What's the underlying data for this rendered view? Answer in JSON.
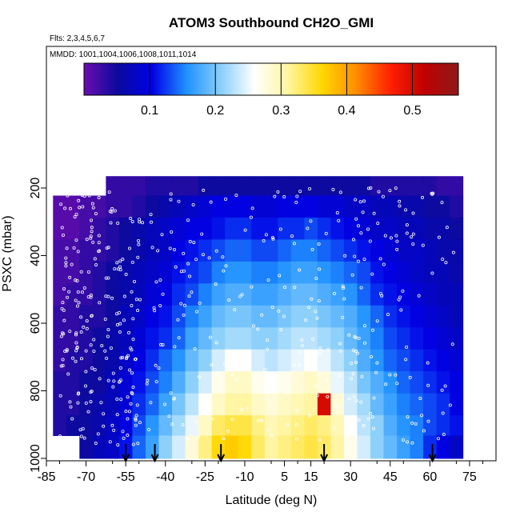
{
  "chart_data": {
    "type": "heatmap",
    "title": "ATOM3 Southbound CH2O_GMI",
    "flights_note": "Flts: 2,3,4,5,6,7",
    "dates_note": "MMDD: 1001,1004,1006,1008,1011,1014",
    "xlabel": "Latitude (deg N)",
    "ylabel": "PSXC (mbar)",
    "xlim": [
      -85,
      85
    ],
    "ylim": [
      1000,
      0
    ],
    "x_ticks": [
      -85,
      -70,
      -55,
      -40,
      -25,
      -10,
      5,
      15,
      30,
      45,
      60,
      75
    ],
    "y_ticks": [
      200,
      400,
      600,
      800,
      1000
    ],
    "colorbar": {
      "ticks": [
        0.1,
        0.2,
        0.3,
        0.4,
        0.5
      ],
      "range": [
        0,
        0.57
      ],
      "colors": [
        "#6a0dad",
        "#0a0aa0",
        "#0000e6",
        "#1e90ff",
        "#87cefa",
        "#ffffff",
        "#fff5a0",
        "#ffd700",
        "#ff8c00",
        "#ff2000",
        "#c00000",
        "#8b1a1a"
      ]
    },
    "profile_arrows_lat": [
      -55,
      -44,
      -19,
      20,
      61
    ],
    "pressure_levels": [
      190,
      255,
      320,
      385,
      450,
      515,
      580,
      645,
      710,
      775,
      840,
      905,
      960
    ],
    "latitude_bins": [
      -80,
      -75,
      -70,
      -65,
      -60,
      -55,
      -50,
      -45,
      -40,
      -35,
      -30,
      -25,
      -20,
      -15,
      -10,
      -5,
      0,
      5,
      10,
      15,
      20,
      25,
      30,
      35,
      40,
      45,
      50,
      55,
      60,
      65,
      70
    ],
    "ch2o_values": [
      [
        null,
        null,
        null,
        null,
        0.03,
        0.03,
        0.03,
        0.04,
        0.04,
        0.04,
        0.04,
        0.05,
        0.05,
        0.05,
        0.05,
        0.05,
        0.05,
        0.05,
        0.05,
        0.05,
        0.05,
        0.05,
        0.05,
        0.05,
        0.04,
        0.04,
        0.04,
        0.04,
        0.04,
        0.03,
        0.03
      ],
      [
        0.01,
        0.01,
        0.02,
        0.02,
        0.03,
        0.03,
        0.04,
        0.05,
        0.06,
        0.07,
        0.08,
        0.09,
        0.1,
        0.1,
        0.1,
        0.09,
        0.09,
        0.1,
        0.1,
        0.1,
        0.09,
        0.09,
        0.08,
        0.08,
        0.07,
        0.07,
        0.06,
        0.06,
        0.05,
        0.05,
        0.04
      ],
      [
        0.01,
        0.01,
        0.02,
        0.03,
        0.04,
        0.05,
        0.06,
        0.07,
        0.08,
        0.09,
        0.1,
        0.1,
        0.11,
        0.12,
        0.12,
        0.11,
        0.11,
        0.12,
        0.12,
        0.13,
        0.12,
        0.11,
        0.1,
        0.09,
        0.08,
        0.08,
        0.07,
        0.07,
        0.06,
        0.06,
        0.05
      ],
      [
        0.02,
        0.02,
        0.03,
        0.03,
        0.04,
        0.05,
        0.06,
        0.07,
        0.08,
        0.1,
        0.11,
        0.12,
        0.13,
        0.14,
        0.14,
        0.13,
        0.13,
        0.14,
        0.15,
        0.15,
        0.14,
        0.13,
        0.12,
        0.11,
        0.1,
        0.09,
        0.08,
        0.08,
        0.07,
        0.06,
        0.06
      ],
      [
        0.02,
        0.02,
        0.03,
        0.04,
        0.05,
        0.06,
        0.07,
        0.08,
        0.09,
        0.11,
        0.12,
        0.13,
        0.15,
        0.16,
        0.16,
        0.15,
        0.15,
        0.16,
        0.17,
        0.17,
        0.16,
        0.15,
        0.14,
        0.13,
        0.11,
        0.1,
        0.09,
        0.08,
        0.07,
        0.07,
        0.06
      ],
      [
        0.02,
        0.03,
        0.03,
        0.04,
        0.05,
        0.06,
        0.07,
        0.09,
        0.1,
        0.12,
        0.13,
        0.15,
        0.17,
        0.18,
        0.18,
        0.17,
        0.17,
        0.18,
        0.19,
        0.19,
        0.18,
        0.17,
        0.16,
        0.14,
        0.12,
        0.11,
        0.1,
        0.09,
        0.08,
        0.07,
        0.07
      ],
      [
        0.03,
        0.03,
        0.04,
        0.04,
        0.05,
        0.07,
        0.08,
        0.1,
        0.11,
        0.13,
        0.15,
        0.17,
        0.19,
        0.2,
        0.2,
        0.19,
        0.19,
        0.2,
        0.21,
        0.21,
        0.2,
        0.19,
        0.18,
        0.16,
        0.14,
        0.12,
        0.11,
        0.1,
        0.09,
        0.08,
        0.07
      ],
      [
        0.03,
        0.03,
        0.04,
        0.05,
        0.06,
        0.07,
        0.09,
        0.11,
        0.12,
        0.14,
        0.17,
        0.19,
        0.21,
        0.22,
        0.22,
        0.21,
        0.21,
        0.22,
        0.23,
        0.23,
        0.22,
        0.21,
        0.19,
        0.17,
        0.15,
        0.13,
        0.12,
        0.11,
        0.1,
        0.09,
        0.08
      ],
      [
        0.03,
        0.04,
        0.04,
        0.05,
        0.06,
        0.08,
        0.1,
        0.12,
        0.14,
        0.16,
        0.19,
        0.21,
        0.24,
        0.26,
        0.26,
        0.24,
        0.23,
        0.24,
        0.25,
        0.26,
        0.25,
        0.23,
        0.21,
        0.18,
        0.16,
        0.14,
        0.13,
        0.12,
        0.11,
        0.1,
        0.09
      ],
      [
        0.04,
        0.04,
        0.05,
        0.05,
        0.07,
        0.09,
        0.11,
        0.13,
        0.15,
        0.18,
        0.21,
        0.24,
        0.27,
        0.29,
        0.29,
        0.27,
        0.26,
        0.27,
        0.28,
        0.29,
        0.28,
        0.25,
        0.23,
        0.2,
        0.18,
        0.16,
        0.14,
        0.13,
        0.12,
        0.11,
        0.1
      ],
      [
        0.04,
        0.04,
        0.05,
        0.06,
        0.07,
        0.09,
        0.12,
        0.14,
        0.17,
        0.2,
        0.23,
        0.26,
        0.29,
        0.31,
        0.31,
        0.29,
        0.28,
        0.29,
        0.3,
        0.31,
        0.5,
        0.28,
        0.24,
        0.22,
        0.19,
        0.17,
        0.15,
        0.14,
        0.13,
        0.12,
        0.1
      ],
      [
        0.04,
        0.05,
        0.05,
        0.06,
        0.08,
        0.1,
        0.13,
        0.16,
        0.19,
        0.22,
        0.25,
        0.29,
        0.33,
        0.34,
        0.34,
        0.32,
        0.3,
        0.31,
        0.32,
        0.33,
        0.32,
        0.3,
        0.26,
        0.23,
        0.21,
        0.18,
        0.16,
        0.15,
        0.13,
        0.12,
        0.11
      ],
      [
        null,
        null,
        0.05,
        0.07,
        0.08,
        0.11,
        0.14,
        0.17,
        0.21,
        0.24,
        0.28,
        0.32,
        0.36,
        0.37,
        0.36,
        0.33,
        0.31,
        0.32,
        0.33,
        0.34,
        0.33,
        0.31,
        0.27,
        0.24,
        0.21,
        0.19,
        0.17,
        0.15,
        0.12,
        0.1,
        0.08
      ]
    ]
  }
}
